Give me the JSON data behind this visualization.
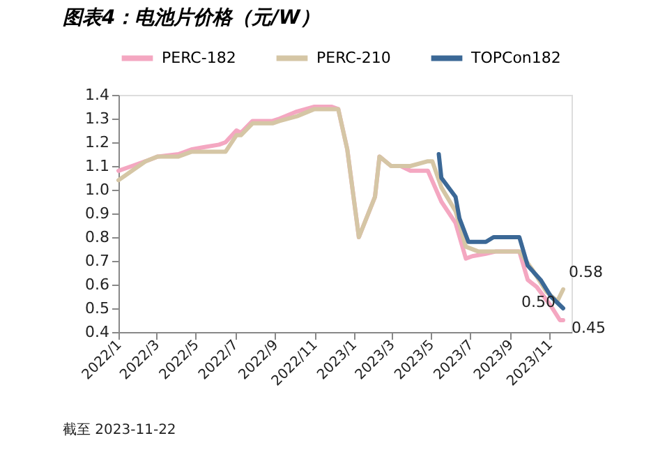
{
  "chart_data": {
    "type": "line",
    "title": "图表4：电池片价格（元/W）",
    "ylim": [
      0.4,
      1.4
    ],
    "yticks": [
      0.4,
      0.5,
      0.6,
      0.7,
      0.8,
      0.9,
      {
        "value": 1.0,
        "label": "1.0"
      },
      1.1,
      1.2,
      1.3,
      1.4
    ],
    "xlim": [
      "2022-01-01",
      "2023-12-05"
    ],
    "xticks": [
      {
        "value": "2022-01-01",
        "label": "2022/1"
      },
      {
        "value": "2022-03-01",
        "label": "2022/3"
      },
      {
        "value": "2022-05-01",
        "label": "2022/5"
      },
      {
        "value": "2022-07-01",
        "label": "2022/7"
      },
      {
        "value": "2022-09-01",
        "label": "2022/9"
      },
      {
        "value": "2022-11-01",
        "label": "2022/11"
      },
      {
        "value": "2023-01-01",
        "label": "2023/1"
      },
      {
        "value": "2023-03-01",
        "label": "2023/3"
      },
      {
        "value": "2023-05-01",
        "label": "2023/5"
      },
      {
        "value": "2023-07-01",
        "label": "2023/7"
      },
      {
        "value": "2023-09-01",
        "label": "2023/9"
      },
      {
        "value": "2023-11-01",
        "label": "2023/11"
      }
    ],
    "legend": "top",
    "grid": false,
    "marker": "none",
    "line_style": "solid",
    "series": [
      {
        "name": "PERC-182",
        "color": "#f4a7c1",
        "x": [
          "2022-01-01",
          "2022-01-22",
          "2022-02-12",
          "2022-03-03",
          "2022-04-04",
          "2022-04-24",
          "2022-05-15",
          "2022-06-06",
          "2022-06-16",
          "2022-07-03",
          "2022-07-10",
          "2022-07-28",
          "2022-08-28",
          "2022-09-08",
          "2022-10-05",
          "2022-11-01",
          "2022-11-28",
          "2022-12-08",
          "2022-12-22",
          "2023-01-09",
          "2023-02-03",
          "2023-02-10",
          "2023-02-28",
          "2023-03-15",
          "2023-03-30",
          "2023-04-26",
          "2023-05-17",
          "2023-06-08",
          "2023-06-24",
          "2023-07-04",
          "2023-07-25",
          "2023-08-10",
          "2023-09-15",
          "2023-09-28",
          "2023-10-12",
          "2023-11-03",
          "2023-11-17",
          "2023-11-22"
        ],
        "values": [
          1.08,
          1.1,
          1.12,
          1.14,
          1.15,
          1.17,
          1.18,
          1.19,
          1.2,
          1.25,
          1.24,
          1.29,
          1.29,
          1.3,
          1.33,
          1.35,
          1.35,
          1.34,
          1.17,
          0.8,
          0.97,
          1.14,
          1.1,
          1.1,
          1.08,
          1.08,
          0.95,
          0.86,
          0.71,
          0.72,
          0.73,
          0.74,
          0.74,
          0.62,
          0.59,
          0.51,
          0.45,
          0.45
        ]
      },
      {
        "name": "PERC-210",
        "color": "#d5c6a5",
        "x": [
          "2022-01-01",
          "2022-01-22",
          "2022-02-12",
          "2022-03-03",
          "2022-04-04",
          "2022-04-24",
          "2022-06-16",
          "2022-07-03",
          "2022-07-10",
          "2022-07-28",
          "2022-08-28",
          "2022-09-08",
          "2022-10-05",
          "2022-11-01",
          "2022-11-28",
          "2022-12-08",
          "2022-12-22",
          "2023-01-09",
          "2023-02-03",
          "2023-02-10",
          "2023-02-28",
          "2023-03-30",
          "2023-04-26",
          "2023-05-03",
          "2023-05-17",
          "2023-06-08",
          "2023-06-24",
          "2023-07-13",
          "2023-09-15",
          "2023-10-06",
          "2023-10-27",
          "2023-11-13",
          "2023-11-22"
        ],
        "values": [
          1.04,
          1.08,
          1.12,
          1.14,
          1.14,
          1.16,
          1.16,
          1.23,
          1.23,
          1.28,
          1.28,
          1.29,
          1.31,
          1.34,
          1.34,
          1.34,
          1.17,
          0.8,
          0.97,
          1.14,
          1.1,
          1.1,
          1.12,
          1.12,
          1.01,
          0.91,
          0.76,
          0.74,
          0.74,
          0.66,
          0.57,
          0.53,
          0.58
        ]
      },
      {
        "name": "TOPCon182",
        "color": "#3b6896",
        "x": [
          "2023-05-13",
          "2023-05-17",
          "2023-06-08",
          "2023-06-14",
          "2023-06-28",
          "2023-07-25",
          "2023-08-06",
          "2023-09-15",
          "2023-09-28",
          "2023-10-18",
          "2023-11-03",
          "2023-11-22"
        ],
        "values": [
          1.15,
          1.05,
          0.97,
          0.88,
          0.78,
          0.78,
          0.8,
          0.8,
          0.68,
          0.62,
          0.55,
          0.5
        ]
      }
    ],
    "annotations": [
      {
        "text": "0.58",
        "x": "2023-11-22",
        "y": 0.58
      },
      {
        "text": "0.50",
        "x": "2023-11-22",
        "y": 0.5
      },
      {
        "text": "0.45",
        "x": "2023-11-22",
        "y": 0.45
      },
      "截至 2023-11-22"
    ]
  }
}
